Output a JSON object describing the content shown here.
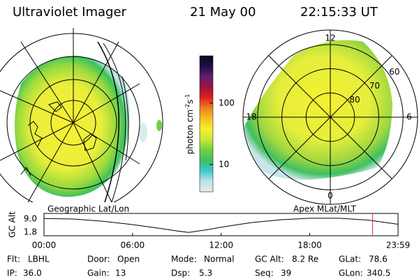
{
  "header": {
    "title": "Ultraviolet Imager",
    "date": "21 May 00",
    "time": "22:15:33 UT"
  },
  "colorbar": {
    "label_parts": [
      "photon cm",
      "-2",
      "s",
      "-1"
    ],
    "scale": "log",
    "lim": [
      3.6,
      590
    ],
    "ticks": [
      10,
      100
    ],
    "colors": [
      "#e8e8e8",
      "#bfe3e6",
      "#3ec8d0",
      "#3cc060",
      "#70d040",
      "#c8e838",
      "#f4f030",
      "#f6c020",
      "#f08020",
      "#e02020",
      "#a01040",
      "#602070",
      "#201040",
      "#080820"
    ]
  },
  "polar_plot": {
    "mlt_ticks": [
      12,
      18,
      6,
      0
    ],
    "lat_rings": [
      80,
      70,
      60
    ],
    "rlim": [
      90,
      54
    ]
  },
  "geographic_label": "Geographic Lat/Lon",
  "apex_label": "Apex MLat/MLT",
  "altitude_panel": {
    "ylabel": "GC Alt",
    "yticks": [
      {
        "value": 9,
        "label": "9.0"
      },
      {
        "value": 1.8,
        "label": "1.8"
      }
    ],
    "ylim": [
      0,
      12
    ],
    "xlim": [
      0,
      23.983
    ],
    "xticks": [
      {
        "value": 0,
        "label": "00:00"
      },
      {
        "value": 6,
        "label": "06:00"
      },
      {
        "value": 12,
        "label": "12:00"
      },
      {
        "value": 18,
        "label": "18:00"
      },
      {
        "value": 23.983,
        "label": "23:59"
      }
    ],
    "x": [
      0,
      2,
      4,
      6,
      8,
      9,
      9.8,
      11,
      12,
      14,
      16,
      18,
      20,
      22,
      23.983
    ],
    "values": [
      9.3,
      9.0,
      7.8,
      6.0,
      3.8,
      2.6,
      1.8,
      3.2,
      4.6,
      7.0,
      8.6,
      9.4,
      9.4,
      8.4,
      6.2
    ],
    "marker_x": 22.26,
    "line_color": "#000000",
    "marker_color": "#e03030"
  },
  "status": {
    "rows": [
      [
        {
          "label": "Flt:",
          "value": "LBHL"
        },
        {
          "label": "Door:",
          "value": "Open"
        },
        {
          "label": "Mode:",
          "value": "Normal"
        },
        {
          "label": "GC Alt:",
          "value": "8.2 Re"
        },
        {
          "label": "GLat:",
          "value": "78.6"
        }
      ],
      [
        {
          "label": "IP:",
          "value": "36.0"
        },
        {
          "label": "Gain:",
          "value": "13"
        },
        {
          "label": "Dsp:",
          "value": "5.3"
        },
        {
          "label": "Seq:",
          "value": "39"
        },
        {
          "label": "GLon:",
          "value": "340.5"
        }
      ]
    ]
  }
}
